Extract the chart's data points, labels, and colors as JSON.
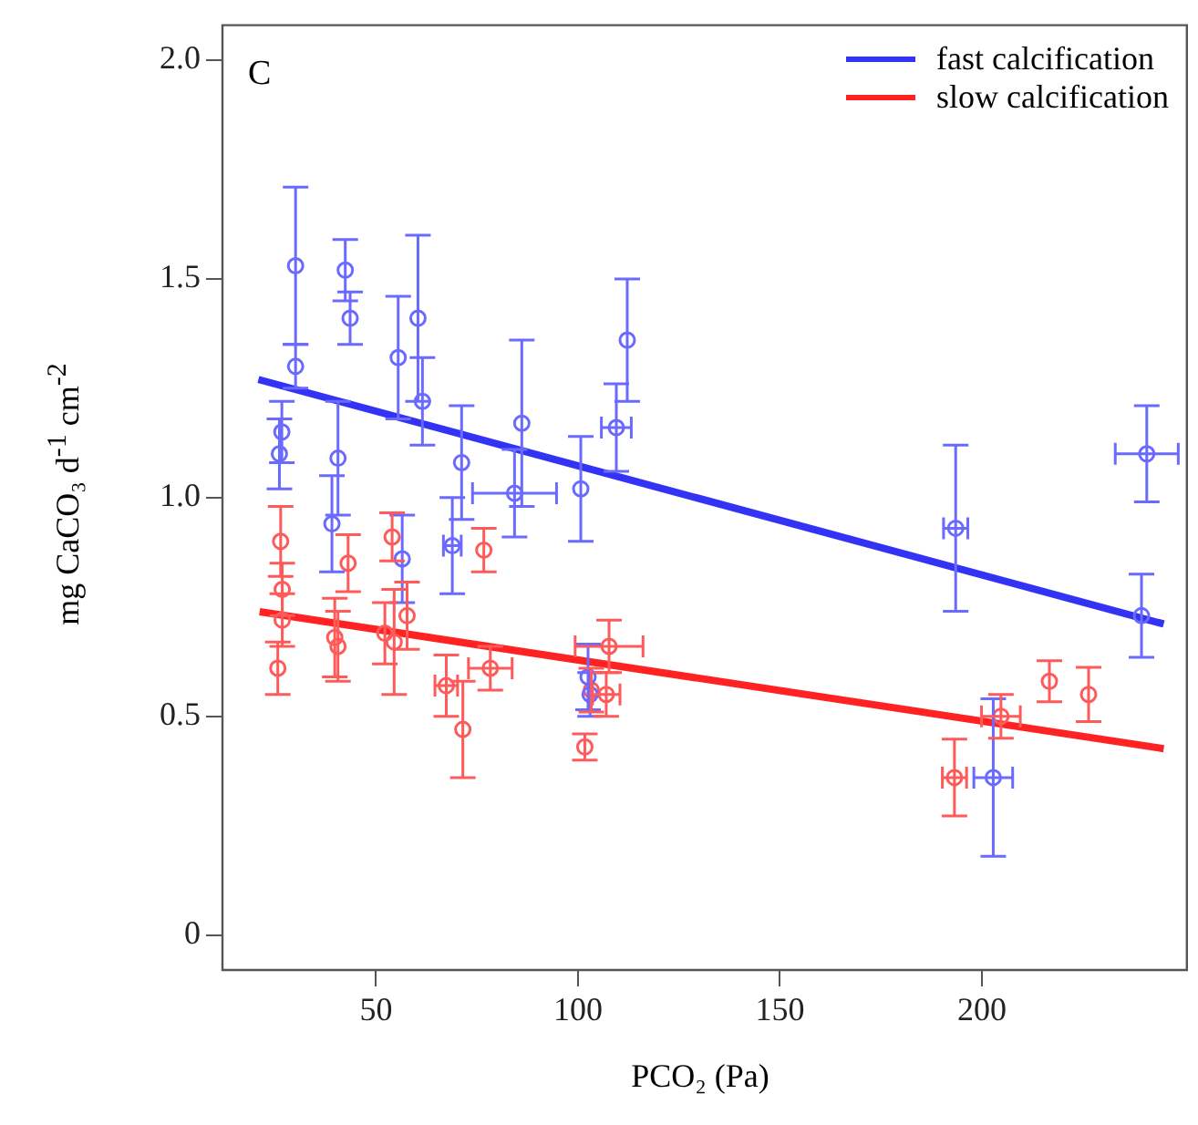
{
  "chart_data": {
    "type": "scatter",
    "xlabel": "PCO₂ (Pa)",
    "ylabel": "mg CaCO₃ d$^{-1}$ cm$^{-2}$",
    "annotations": [
      "C"
    ],
    "xlim": [
      12,
      251
    ],
    "xticks": [
      50,
      100,
      150,
      200
    ],
    "ylim": [
      -0.08,
      2.08
    ],
    "yticks": [
      0,
      0.5,
      {
        "value": 1,
        "label": "1.0"
      },
      1.5,
      {
        "value": 2,
        "label": "2.0"
      }
    ],
    "grid": false,
    "legend": "top right",
    "marker": "circle",
    "series": [
      {
        "color": "#6a6aff",
        "x": [
          30.1,
          30.1,
          42.4,
          43.6,
          55.5,
          60.4,
          61.5,
          26.7,
          26.1,
          40.6,
          71.2,
          39.1,
          56.5,
          68.9,
          112.2,
          109.5,
          86.1,
          84.3,
          100.7,
          102.5,
          103,
          193.5,
          240.8,
          239.5,
          202.8
        ],
        "values": [
          1.53,
          1.3,
          1.52,
          1.41,
          1.32,
          1.41,
          1.22,
          1.15,
          1.1,
          1.09,
          1.08,
          0.94,
          0.86,
          0.89,
          1.36,
          1.16,
          1.17,
          1.01,
          1.02,
          0.59,
          0.55,
          0.93,
          1.1,
          0.73,
          0.36
        ],
        "errors": [
          0.18,
          0.05,
          0.07,
          0.06,
          0.14,
          0.19,
          0.1,
          0.07,
          0.08,
          0.13,
          0.13,
          0.11,
          0.1,
          0.11,
          0.14,
          0.1,
          0.19,
          0.1,
          0.12,
          0.075,
          0.05,
          0.19,
          0.11,
          0.095,
          0.18
        ],
        "xerrors": [
          null,
          null,
          null,
          null,
          null,
          null,
          null,
          null,
          null,
          null,
          null,
          null,
          null,
          2.2,
          null,
          3.7,
          null,
          10.4,
          null,
          null,
          null,
          3,
          7.8,
          null,
          4.8
        ]
      },
      {
        "color": "#ff5a5a",
        "x": [
          26.4,
          26.8,
          26.8,
          25.7,
          43.1,
          39.8,
          40.6,
          54.0,
          57.7,
          52.2,
          54.5,
          67.4,
          71.5,
          76.7,
          78.3,
          107.7,
          107,
          103.3,
          101.7,
          204.7,
          193.2,
          216.7,
          226.4
        ],
        "values": [
          0.9,
          0.79,
          0.72,
          0.61,
          0.85,
          0.68,
          0.66,
          0.91,
          0.73,
          0.69,
          0.67,
          0.57,
          0.47,
          0.88,
          0.61,
          0.66,
          0.55,
          0.56,
          0.43,
          0.5,
          0.36,
          0.58,
          0.55
        ],
        "errors": [
          0.08,
          0.06,
          0.06,
          0.06,
          0.065,
          0.09,
          0.08,
          0.055,
          0.077,
          0.07,
          0.12,
          0.07,
          0.11,
          0.05,
          0.05,
          0.06,
          0.05,
          0.05,
          0.03,
          0.05,
          0.088,
          0.047,
          0.062
        ],
        "xerrors": [
          null,
          null,
          null,
          null,
          null,
          null,
          null,
          null,
          null,
          null,
          null,
          2.8,
          null,
          null,
          5.4,
          8.4,
          3.4,
          null,
          null,
          4.8,
          3,
          null,
          null
        ]
      },
      {
        "type": "line",
        "marker": "none",
        "name": "fast calcification",
        "color": "#3333f5",
        "x": [
          20.9,
          245
        ],
        "values": [
          1.27,
          0.711
        ]
      },
      {
        "type": "line",
        "marker": "none",
        "name": "slow calcification",
        "color": "#ff2222",
        "x": [
          21.2,
          245
        ],
        "values": [
          0.739,
          0.426
        ]
      }
    ]
  }
}
